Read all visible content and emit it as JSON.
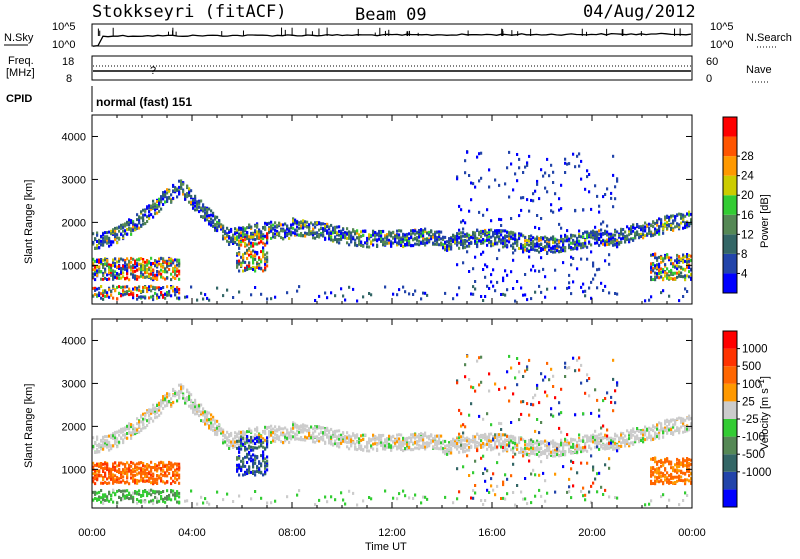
{
  "header": {
    "station": "Stokkseyri (fitACF)",
    "beam": "Beam 09",
    "date": "04/Aug/2012"
  },
  "side_labels": {
    "nsky": "N.Sky",
    "freq_line1": "Freq.",
    "freq_line2": "[MHz]",
    "cpid": "CPID",
    "nsearch": "N.Search",
    "nave": "Nave"
  },
  "cpid_text": "normal (fast) 151",
  "time_axis_label": "Time UT",
  "colors": {
    "power": [
      "#0000ff",
      "#2244aa",
      "#336666",
      "#558855",
      "#33cc33",
      "#cccc00",
      "#ff9900",
      "#ff5500",
      "#ff0000"
    ],
    "velocity": [
      "#0000ff",
      "#2244aa",
      "#336666",
      "#558855",
      "#33cc33",
      "#cccccc",
      "#ff9900",
      "#ff6600",
      "#ff3300",
      "#ff0000"
    ]
  },
  "chart_data": [
    {
      "type": "line",
      "id": "noise",
      "left_ticks": [
        "10^5",
        "10^0"
      ],
      "right_ticks": [
        "10^5",
        "10^0"
      ],
      "series": [
        {
          "name": "N.Sky",
          "style": "solid"
        },
        {
          "name": "N.Search",
          "style": "dotted"
        }
      ]
    },
    {
      "type": "line",
      "id": "frequency",
      "left_ticks": [
        18,
        8
      ],
      "right_ticks": [
        60,
        0
      ],
      "series": [
        {
          "name": "Freq",
          "style": "solid",
          "values_approx": [
            10.5
          ]
        },
        {
          "name": "Nave",
          "style": "dotted",
          "values_approx": [
            26
          ]
        }
      ]
    },
    {
      "type": "heatmap",
      "id": "power",
      "ylabel": "Slant Range [km]",
      "xlabel": "Time UT",
      "xlim": [
        "00:00",
        "24:00"
      ],
      "ylim": [
        100,
        4500
      ],
      "y_ticks": [
        1000,
        2000,
        3000,
        4000
      ],
      "x_ticks": [
        "00:00",
        "04:00",
        "08:00",
        "12:00",
        "16:00",
        "20:00",
        "00:00"
      ],
      "colorbar_label": "Power [dB]",
      "colorbar_ticks": [
        4,
        8,
        12,
        16,
        20,
        24,
        28
      ],
      "colorbar_range": [
        0,
        30
      ]
    },
    {
      "type": "heatmap",
      "id": "velocity",
      "ylabel": "Slant Range [km]",
      "xlabel": "Time UT",
      "xlim": [
        "00:00",
        "24:00"
      ],
      "ylim": [
        100,
        4500
      ],
      "y_ticks": [
        1000,
        2000,
        3000,
        4000
      ],
      "x_ticks": [
        "00:00",
        "04:00",
        "08:00",
        "12:00",
        "16:00",
        "20:00",
        "00:00"
      ],
      "colorbar_label": "Velocity [m s^-1]",
      "colorbar_ticks": [
        1000,
        500,
        100,
        25,
        -25,
        -100,
        -500,
        -1000
      ]
    }
  ]
}
